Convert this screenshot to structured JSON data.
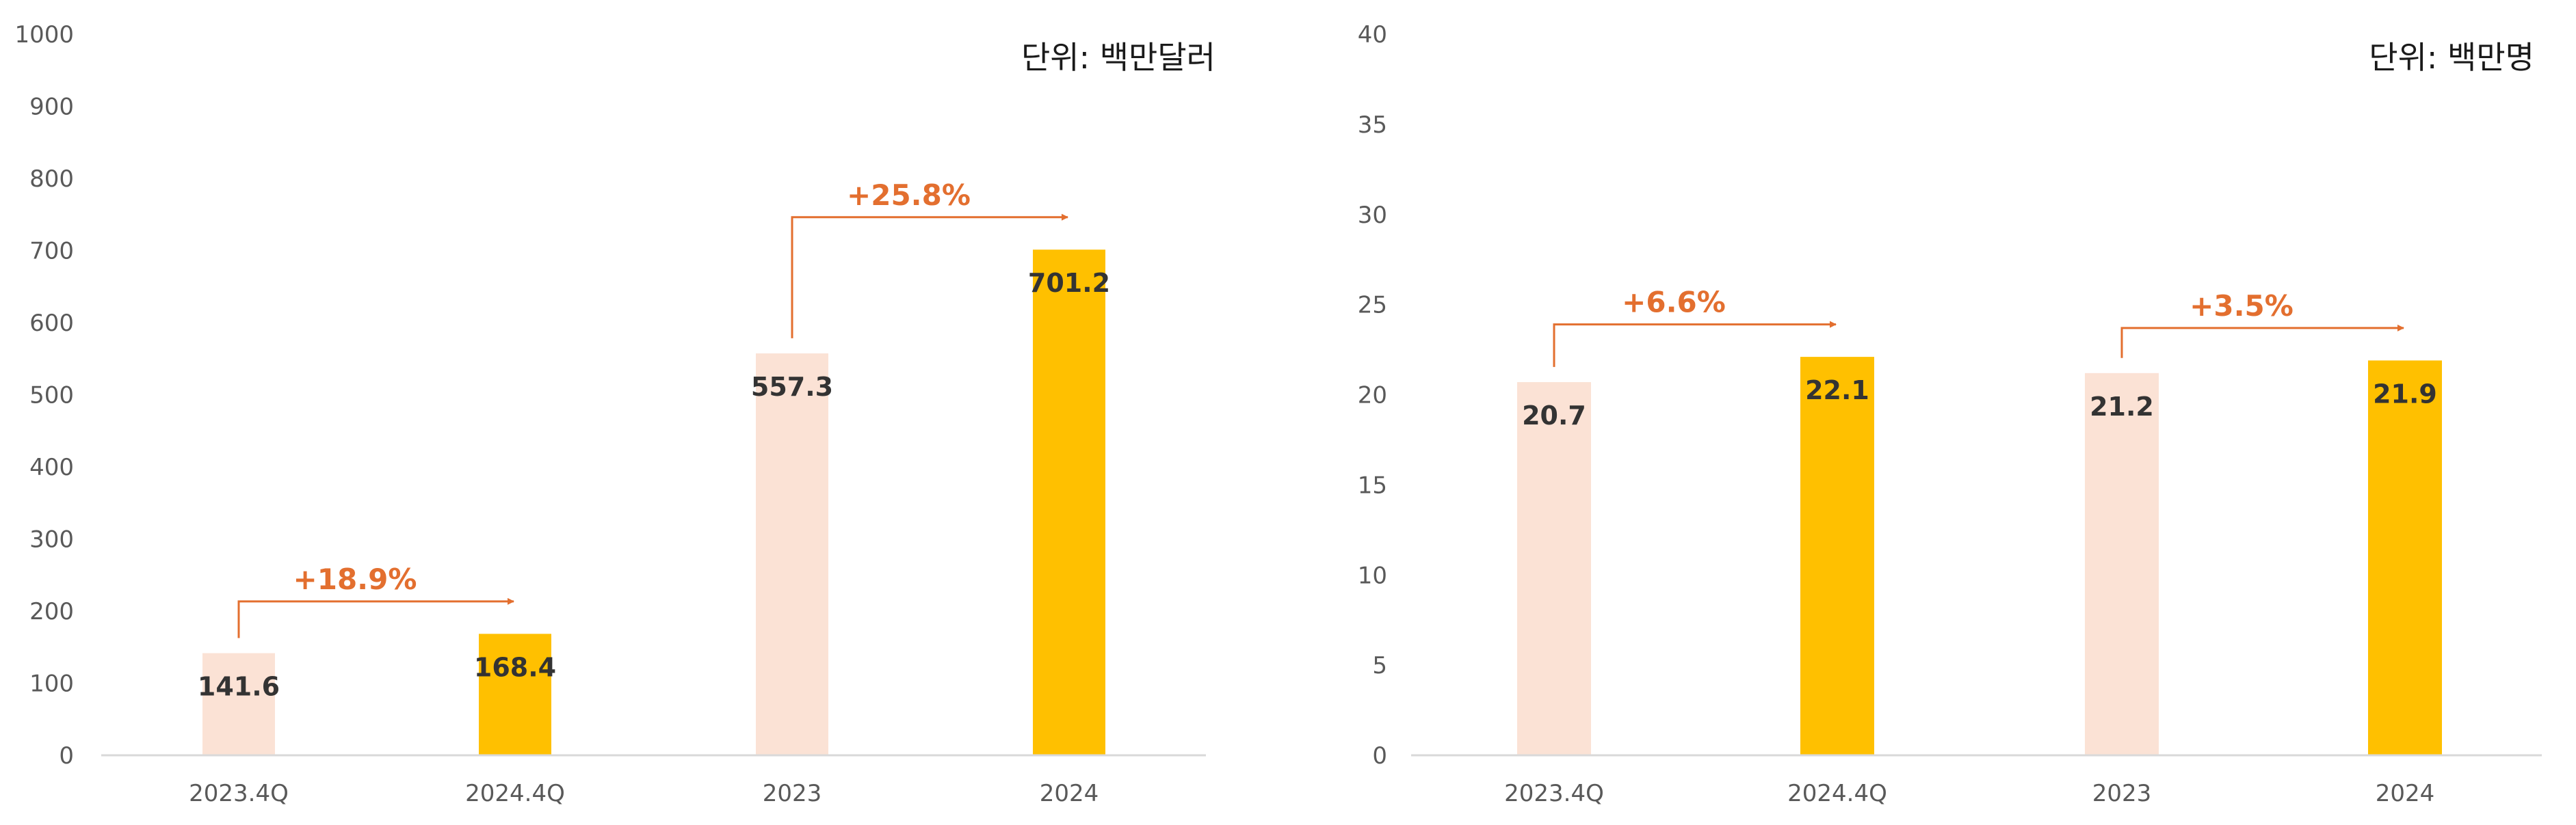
{
  "chart_data": [
    {
      "type": "bar",
      "unit_label": "단위: 백만달러",
      "categories": [
        "2023.4Q",
        "2024.4Q",
        "2023",
        "2024"
      ],
      "values": [
        141.6,
        168.4,
        557.3,
        701.2
      ],
      "value_labels": [
        "141.6",
        "168.4",
        "557.3",
        "701.2"
      ],
      "ylim": [
        0,
        1000
      ],
      "yticks": [
        0,
        100,
        200,
        300,
        400,
        500,
        600,
        700,
        800,
        900,
        1000
      ],
      "bar_colors": [
        "#fbe2d5",
        "#ffc000",
        "#fbe2d5",
        "#ffc000"
      ],
      "growth": [
        {
          "label": "+18.9%",
          "from": 0,
          "to": 1
        },
        {
          "label": "+25.8%",
          "from": 2,
          "to": 3
        }
      ],
      "grid": false,
      "title": "",
      "xlabel": "",
      "ylabel": ""
    },
    {
      "type": "bar",
      "unit_label": "단위: 백만명",
      "categories": [
        "2023.4Q",
        "2024.4Q",
        "2023",
        "2024"
      ],
      "values": [
        20.7,
        22.1,
        21.2,
        21.9
      ],
      "value_labels": [
        "20.7",
        "22.1",
        "21.2",
        "21.9"
      ],
      "ylim": [
        0,
        40
      ],
      "yticks": [
        0,
        5,
        10,
        15,
        20,
        25,
        30,
        35,
        40
      ],
      "bar_colors": [
        "#fbe2d5",
        "#ffc000",
        "#fbe2d5",
        "#ffc000"
      ],
      "growth": [
        {
          "label": "+6.6%",
          "from": 0,
          "to": 1
        },
        {
          "label": "+3.5%",
          "from": 2,
          "to": 3
        }
      ],
      "grid": false,
      "title": "",
      "xlabel": "",
      "ylabel": ""
    }
  ],
  "colors": {
    "accent": "#e36f2f",
    "axis": "#d9d9d9",
    "tick_text": "#595959"
  }
}
